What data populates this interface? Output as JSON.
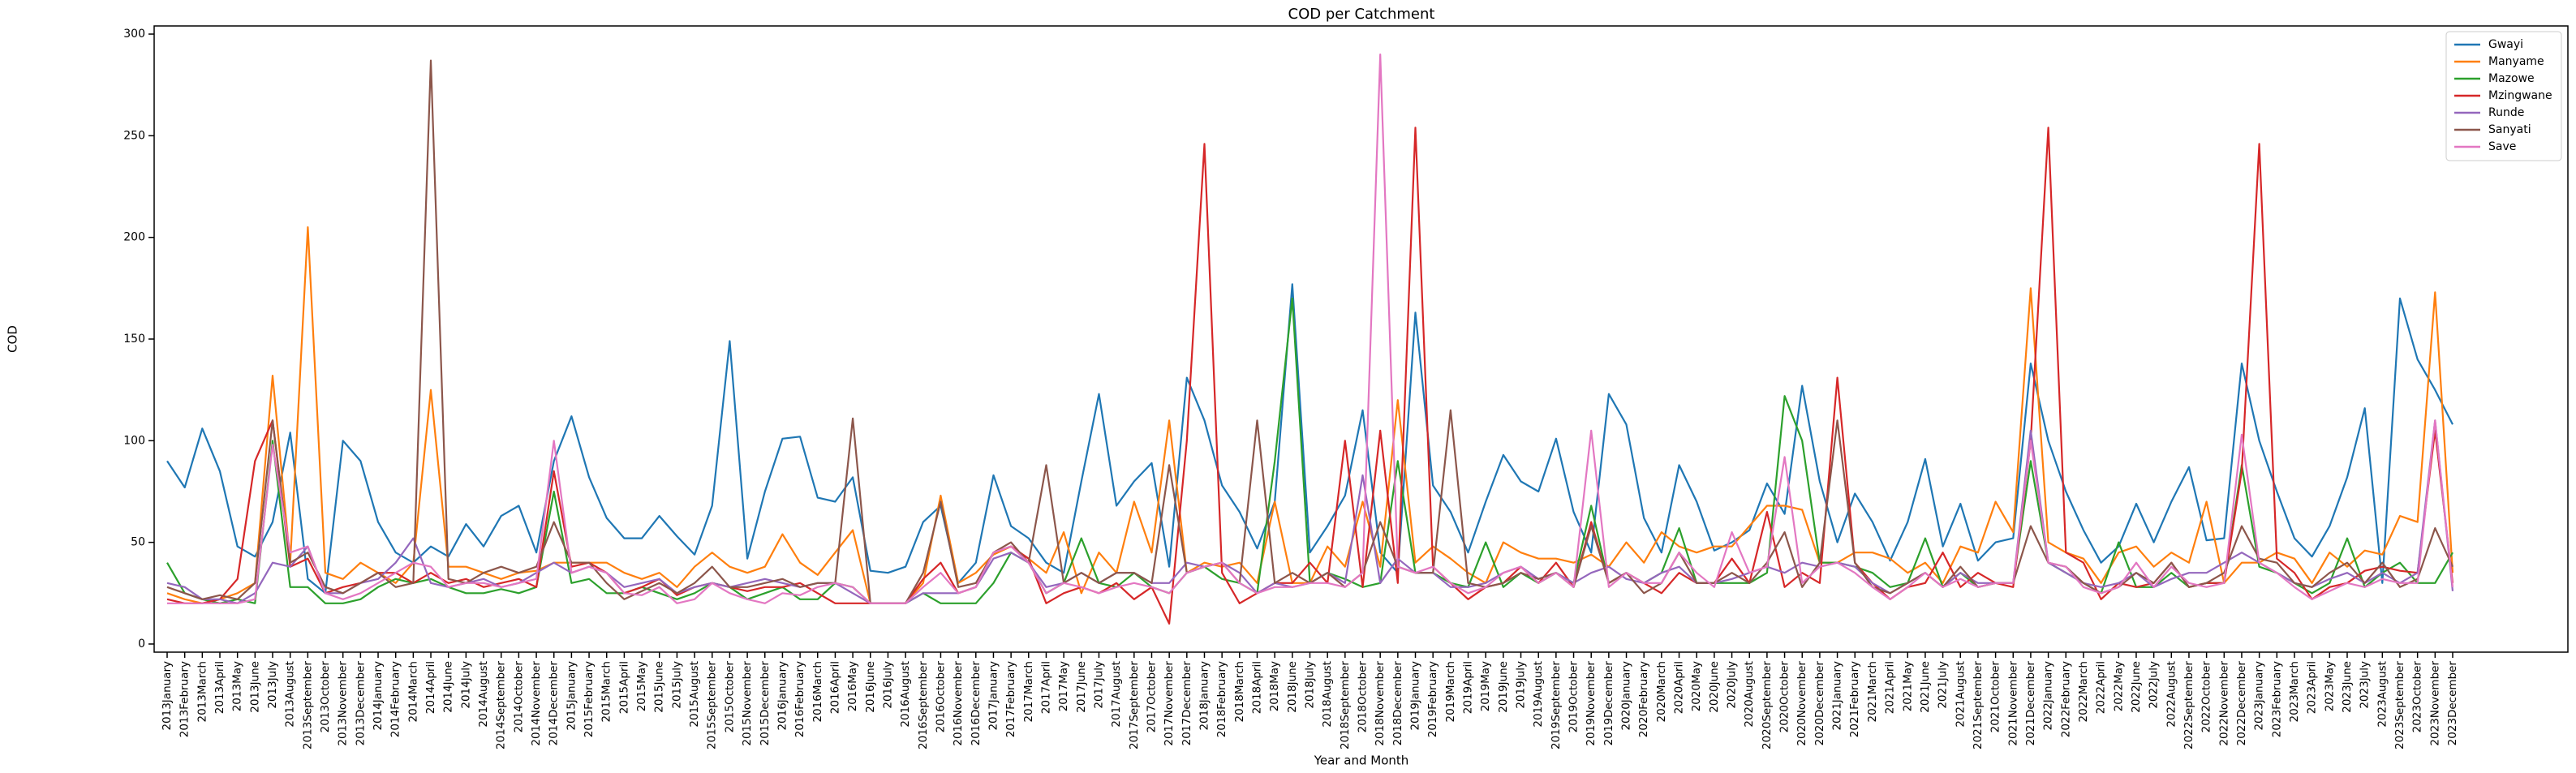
{
  "chart_data": {
    "type": "line",
    "title": "COD per Catchment",
    "xlabel": "Year and Month",
    "ylabel": "COD",
    "categories": [
      "2013January",
      "2013February",
      "2013March",
      "2013April",
      "2013May",
      "2013June",
      "2013July",
      "2013August",
      "2013September",
      "2013October",
      "2013November",
      "2013December",
      "2014January",
      "2014February",
      "2014March",
      "2014April",
      "2014June",
      "2014July",
      "2014August",
      "2014September",
      "2014October",
      "2014November",
      "2014December",
      "2015January",
      "2015February",
      "2015March",
      "2015April",
      "2015May",
      "2015June",
      "2015July",
      "2015August",
      "2015September",
      "2015October",
      "2015November",
      "2015December",
      "2016January",
      "2016February",
      "2016March",
      "2016April",
      "2016May",
      "2016June",
      "2016July",
      "2016August",
      "2016September",
      "2016October",
      "2016November",
      "2016December",
      "2017January",
      "2017February",
      "2017March",
      "2017April",
      "2017May",
      "2017June",
      "2017July",
      "2017August",
      "2017September",
      "2017October",
      "2017November",
      "2017December",
      "2018January",
      "2018February",
      "2018March",
      "2018April",
      "2018May",
      "2018June",
      "2018July",
      "2018August",
      "2018September",
      "2018October",
      "2018November",
      "2018December",
      "2019January",
      "2019February",
      "2019March",
      "2019April",
      "2019May",
      "2019June",
      "2019July",
      "2019August",
      "2019September",
      "2019October",
      "2019November",
      "2019December",
      "2020January",
      "2020February",
      "2020March",
      "2020April",
      "2020May",
      "2020June",
      "2020July",
      "2020August",
      "2020September",
      "2020October",
      "2020November",
      "2020December",
      "2021January",
      "2021February",
      "2021March",
      "2021April",
      "2021May",
      "2021June",
      "2021July",
      "2021August",
      "2021September",
      "2021October",
      "2021November",
      "2021December",
      "2022January",
      "2022February",
      "2022March",
      "2022April",
      "2022May",
      "2022June",
      "2022July",
      "2022August",
      "2022September",
      "2022October",
      "2022November",
      "2022December",
      "2023January",
      "2023February",
      "2023March",
      "2023April",
      "2023May",
      "2023June",
      "2023July",
      "2023August",
      "2023September",
      "2023October",
      "2023November",
      "2023December"
    ],
    "series": [
      {
        "name": "Gwayi",
        "color": "#1f77b4",
        "values": [
          90,
          77,
          106,
          85,
          48,
          43,
          60,
          104,
          32,
          25,
          100,
          90,
          60,
          45,
          40,
          48,
          43,
          59,
          48,
          63,
          68,
          45,
          90,
          112,
          82,
          62,
          52,
          52,
          63,
          53,
          44,
          68,
          149,
          42,
          75,
          101,
          102,
          72,
          70,
          82,
          36,
          35,
          38,
          60,
          68,
          30,
          40,
          83,
          58,
          52,
          40,
          35,
          80,
          123,
          68,
          80,
          89,
          38,
          131,
          110,
          78,
          65,
          47,
          70,
          177,
          45,
          58,
          73,
          115,
          45,
          35,
          163,
          78,
          65,
          45,
          70,
          93,
          80,
          75,
          101,
          65,
          45,
          123,
          108,
          62,
          45,
          88,
          70,
          46,
          50,
          56,
          79,
          64,
          127,
          80,
          50,
          74,
          60,
          41,
          60,
          91,
          48,
          69,
          41,
          50,
          52,
          138,
          100,
          75,
          56,
          40,
          48,
          69,
          50,
          70,
          87,
          51,
          52,
          138,
          100,
          75,
          52,
          43,
          58,
          82,
          116,
          30,
          170,
          140,
          125,
          108
        ]
      },
      {
        "name": "Manyame",
        "color": "#ff7f0e",
        "values": [
          25,
          22,
          20,
          22,
          25,
          30,
          132,
          40,
          205,
          35,
          32,
          40,
          35,
          30,
          40,
          125,
          38,
          38,
          35,
          32,
          35,
          36,
          40,
          40,
          40,
          40,
          35,
          32,
          35,
          28,
          38,
          45,
          38,
          35,
          38,
          54,
          40,
          34,
          45,
          56,
          20,
          20,
          20,
          30,
          73,
          30,
          35,
          44,
          48,
          42,
          35,
          55,
          25,
          45,
          35,
          70,
          45,
          110,
          35,
          40,
          38,
          40,
          30,
          70,
          30,
          30,
          48,
          38,
          70,
          38,
          120,
          40,
          48,
          42,
          35,
          30,
          50,
          45,
          42,
          42,
          40,
          44,
          38,
          50,
          40,
          55,
          48,
          45,
          48,
          48,
          58,
          68,
          68,
          66,
          40,
          40,
          45,
          45,
          42,
          35,
          40,
          30,
          48,
          45,
          70,
          55,
          175,
          50,
          45,
          42,
          30,
          45,
          48,
          38,
          45,
          40,
          70,
          30,
          40,
          40,
          45,
          42,
          30,
          45,
          38,
          46,
          44,
          63,
          60,
          173,
          35
        ]
      },
      {
        "name": "Mazowe",
        "color": "#2ca02c",
        "values": [
          40,
          25,
          22,
          20,
          22,
          20,
          100,
          28,
          28,
          20,
          20,
          22,
          28,
          32,
          30,
          32,
          28,
          25,
          25,
          27,
          25,
          28,
          75,
          30,
          32,
          25,
          25,
          28,
          25,
          22,
          25,
          30,
          28,
          22,
          25,
          28,
          22,
          22,
          30,
          28,
          20,
          20,
          20,
          25,
          20,
          20,
          20,
          30,
          45,
          40,
          25,
          30,
          52,
          30,
          28,
          35,
          28,
          25,
          35,
          38,
          32,
          30,
          25,
          90,
          170,
          30,
          35,
          32,
          28,
          30,
          90,
          35,
          35,
          30,
          28,
          50,
          28,
          35,
          30,
          35,
          30,
          68,
          30,
          35,
          30,
          35,
          57,
          30,
          30,
          30,
          30,
          35,
          122,
          100,
          40,
          40,
          38,
          35,
          28,
          30,
          52,
          28,
          35,
          28,
          30,
          30,
          90,
          40,
          35,
          30,
          25,
          50,
          28,
          28,
          35,
          28,
          30,
          30,
          88,
          38,
          35,
          30,
          25,
          30,
          52,
          28,
          35,
          40,
          30,
          30,
          45
        ]
      },
      {
        "name": "Mzingwane",
        "color": "#d62728",
        "values": [
          22,
          20,
          20,
          22,
          32,
          90,
          110,
          38,
          42,
          25,
          28,
          30,
          35,
          35,
          30,
          35,
          30,
          32,
          28,
          30,
          32,
          28,
          85,
          38,
          40,
          35,
          25,
          28,
          32,
          24,
          28,
          30,
          28,
          26,
          28,
          28,
          30,
          25,
          20,
          20,
          20,
          20,
          20,
          32,
          40,
          25,
          28,
          45,
          48,
          42,
          20,
          25,
          28,
          25,
          30,
          22,
          28,
          10,
          100,
          246,
          35,
          20,
          25,
          30,
          30,
          40,
          30,
          100,
          28,
          105,
          30,
          254,
          38,
          30,
          22,
          28,
          30,
          38,
          30,
          40,
          28,
          60,
          30,
          35,
          30,
          25,
          35,
          30,
          30,
          42,
          30,
          65,
          28,
          35,
          30,
          131,
          40,
          30,
          22,
          28,
          30,
          45,
          28,
          35,
          30,
          28,
          100,
          254,
          45,
          40,
          22,
          30,
          28,
          30,
          40,
          28,
          30,
          30,
          85,
          246,
          42,
          35,
          22,
          28,
          30,
          36,
          38,
          36,
          35,
          105,
          30
        ]
      },
      {
        "name": "Runde",
        "color": "#9467bd",
        "values": [
          30,
          28,
          22,
          22,
          20,
          25,
          40,
          38,
          48,
          25,
          25,
          30,
          32,
          40,
          52,
          30,
          28,
          30,
          32,
          28,
          30,
          35,
          40,
          35,
          38,
          35,
          28,
          30,
          32,
          25,
          28,
          30,
          28,
          30,
          32,
          30,
          28,
          30,
          30,
          25,
          20,
          20,
          20,
          25,
          25,
          25,
          28,
          42,
          45,
          40,
          28,
          30,
          35,
          30,
          35,
          35,
          30,
          30,
          40,
          38,
          40,
          35,
          25,
          30,
          28,
          30,
          35,
          30,
          83,
          30,
          42,
          35,
          35,
          28,
          28,
          30,
          35,
          38,
          32,
          35,
          30,
          35,
          38,
          32,
          30,
          35,
          38,
          30,
          30,
          32,
          35,
          38,
          35,
          40,
          38,
          40,
          38,
          30,
          25,
          30,
          35,
          28,
          35,
          30,
          30,
          30,
          105,
          40,
          35,
          30,
          28,
          30,
          35,
          28,
          32,
          35,
          35,
          40,
          45,
          40,
          35,
          30,
          28,
          32,
          35,
          30,
          35,
          30,
          35,
          110,
          26
        ]
      },
      {
        "name": "Sanyati",
        "color": "#8c564b",
        "values": [
          28,
          25,
          22,
          24,
          22,
          30,
          110,
          40,
          45,
          28,
          25,
          30,
          35,
          28,
          30,
          287,
          32,
          30,
          35,
          38,
          35,
          38,
          60,
          40,
          40,
          30,
          22,
          26,
          30,
          25,
          30,
          38,
          28,
          28,
          30,
          32,
          28,
          30,
          30,
          111,
          20,
          20,
          20,
          35,
          70,
          28,
          30,
          45,
          50,
          40,
          88,
          30,
          35,
          30,
          35,
          35,
          30,
          88,
          35,
          38,
          40,
          30,
          110,
          30,
          35,
          30,
          35,
          28,
          35,
          60,
          38,
          35,
          35,
          115,
          30,
          28,
          30,
          35,
          32,
          35,
          28,
          58,
          30,
          35,
          25,
          30,
          45,
          30,
          30,
          35,
          30,
          40,
          55,
          28,
          40,
          110,
          40,
          28,
          25,
          30,
          35,
          28,
          38,
          28,
          30,
          30,
          58,
          40,
          38,
          30,
          25,
          28,
          35,
          30,
          40,
          28,
          30,
          35,
          58,
          42,
          40,
          30,
          28,
          35,
          40,
          30,
          40,
          28,
          32,
          57,
          38
        ]
      },
      {
        "name": "Save",
        "color": "#e377c2",
        "values": [
          20,
          20,
          20,
          20,
          20,
          22,
          98,
          45,
          48,
          25,
          22,
          25,
          30,
          35,
          40,
          38,
          28,
          30,
          30,
          28,
          30,
          32,
          100,
          35,
          38,
          35,
          25,
          24,
          28,
          20,
          22,
          30,
          25,
          22,
          20,
          25,
          24,
          28,
          30,
          28,
          20,
          20,
          20,
          28,
          35,
          25,
          28,
          45,
          48,
          40,
          25,
          30,
          28,
          25,
          28,
          30,
          28,
          25,
          35,
          38,
          40,
          30,
          25,
          28,
          28,
          30,
          30,
          28,
          35,
          290,
          38,
          35,
          38,
          30,
          25,
          28,
          35,
          38,
          30,
          35,
          28,
          105,
          28,
          35,
          30,
          30,
          45,
          35,
          28,
          55,
          35,
          38,
          92,
          30,
          38,
          40,
          35,
          28,
          22,
          28,
          35,
          28,
          32,
          28,
          30,
          30,
          100,
          40,
          38,
          28,
          25,
          28,
          40,
          28,
          38,
          30,
          28,
          30,
          103,
          40,
          35,
          28,
          22,
          26,
          30,
          28,
          32,
          30,
          30,
          110,
          28
        ]
      }
    ],
    "ylim": [
      -4,
      304
    ],
    "yticks": [
      0,
      50,
      100,
      150,
      200,
      250,
      300
    ],
    "grid": false,
    "legend": "upper right"
  }
}
